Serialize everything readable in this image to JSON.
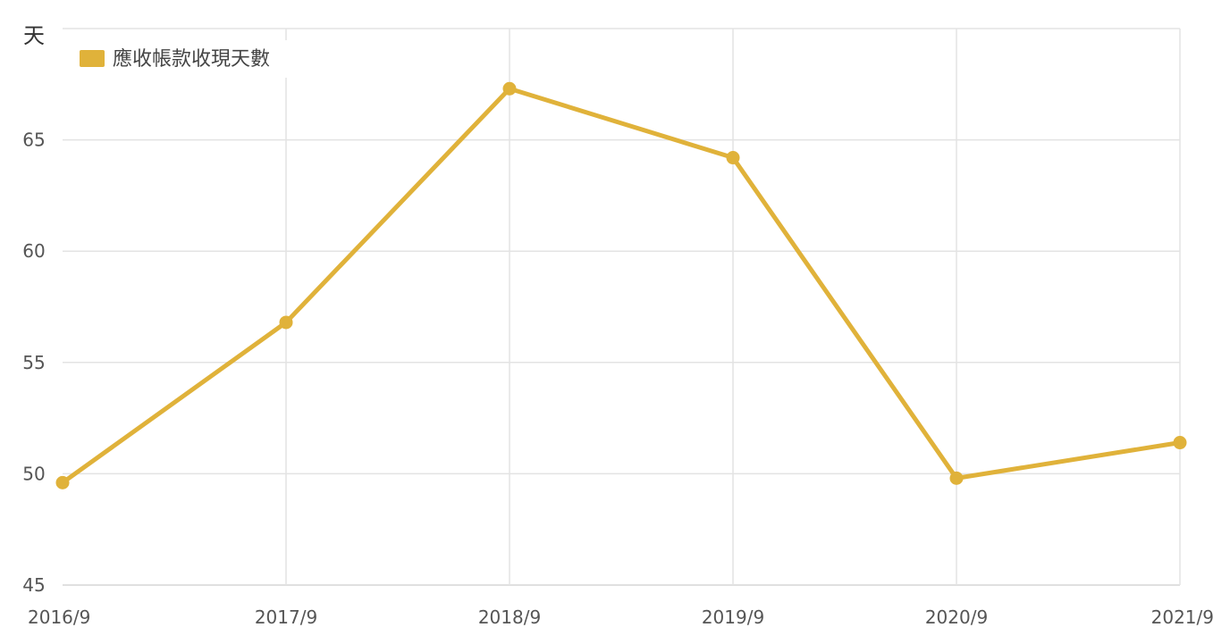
{
  "chart_data": {
    "type": "line",
    "y_unit_label": "天",
    "categories": [
      "2016/9",
      "2017/9",
      "2018/9",
      "2019/9",
      "2020/9",
      "2021/9"
    ],
    "series": [
      {
        "name": "應收帳款收現天數",
        "values": [
          49.6,
          56.8,
          67.3,
          64.2,
          49.8,
          51.4
        ],
        "color": "#e0b23a"
      }
    ],
    "ylim": [
      45,
      70
    ],
    "yticks": [
      45,
      50,
      55,
      60,
      65
    ],
    "grid": true,
    "legend_position": "top-left"
  }
}
